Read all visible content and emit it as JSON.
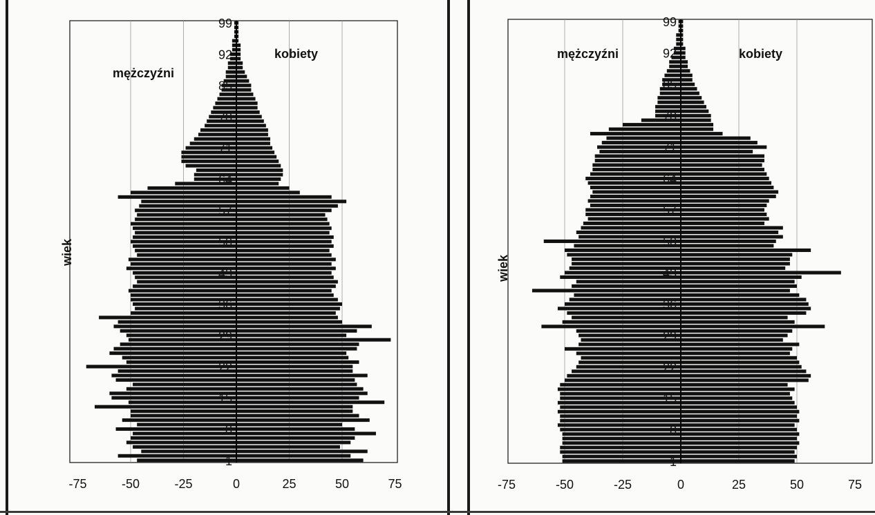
{
  "chart_data": [
    {
      "type": "bar",
      "orientation": "horizontal-pyramid",
      "ylabel": "wiek",
      "left_series_label": "mężczyźni",
      "right_series_label": "kobiety",
      "xticks": [
        "-75",
        "-50",
        "-25",
        "0",
        "25",
        "50",
        "75"
      ],
      "xlim": [
        -75,
        75
      ],
      "age_labels": [
        "99",
        "92",
        "85",
        "78",
        "71",
        "64",
        "57",
        "50",
        "43",
        "36",
        "29",
        "22",
        "15",
        "8",
        "1"
      ],
      "grid": true,
      "series": [
        {
          "name": "mężczyźni",
          "values": [
            -47,
            -56,
            -45,
            -49,
            -52,
            -50,
            -49,
            -57,
            -47,
            -54,
            -50,
            -50,
            -67,
            -51,
            -59,
            -60,
            -52,
            -49,
            -57,
            -59,
            -56,
            -71,
            -52,
            -54,
            -60,
            -58,
            -55,
            -51,
            -52,
            -55,
            -58,
            -56,
            -65,
            -50,
            -48,
            -49,
            -50,
            -50,
            -51,
            -49,
            -47,
            -48,
            -49,
            -52,
            -50,
            -51,
            -47,
            -48,
            -49,
            -50,
            -49,
            -48,
            -49,
            -50,
            -48,
            -47,
            -48,
            -46,
            -45,
            -56,
            -50,
            -42,
            -29,
            -20,
            -20,
            -19,
            -24,
            -26,
            -26,
            -26,
            -24,
            -22,
            -20,
            -18,
            -17,
            -15,
            -14,
            -13,
            -12,
            -11,
            -10,
            -9,
            -8,
            -7,
            -7,
            -6,
            -5,
            -5,
            -4,
            -4,
            -3,
            -3,
            -2,
            -2,
            -2,
            -1,
            -1,
            -1,
            -1
          ]
        },
        {
          "name": "kobiety",
          "values": [
            60,
            54,
            62,
            49,
            54,
            56,
            66,
            56,
            50,
            63,
            58,
            55,
            55,
            70,
            58,
            62,
            60,
            57,
            56,
            62,
            55,
            55,
            58,
            53,
            52,
            57,
            58,
            73,
            52,
            57,
            64,
            50,
            48,
            47,
            49,
            50,
            48,
            46,
            45,
            47,
            48,
            46,
            45,
            47,
            45,
            47,
            45,
            44,
            46,
            45,
            46,
            44,
            45,
            44,
            43,
            42,
            45,
            48,
            52,
            45,
            30,
            25,
            20,
            21,
            22,
            22,
            21,
            20,
            19,
            18,
            17,
            16,
            16,
            15,
            15,
            14,
            13,
            12,
            11,
            10,
            10,
            9,
            8,
            7,
            7,
            6,
            5,
            4,
            3,
            3,
            2,
            2,
            2,
            2,
            1,
            1,
            1,
            1,
            1
          ]
        }
      ]
    },
    {
      "type": "bar",
      "orientation": "horizontal-pyramid",
      "ylabel": "wiek",
      "left_series_label": "mężczyźni",
      "right_series_label": "kobiety",
      "xticks": [
        "-75",
        "-50",
        "-25",
        "0",
        "25",
        "50",
        "75"
      ],
      "xlim": [
        -75,
        75
      ],
      "age_labels": [
        "99",
        "92",
        "85",
        "78",
        "71",
        "64",
        "57",
        "50",
        "43",
        "36",
        "29",
        "22",
        "15",
        "8",
        "1"
      ],
      "grid": true,
      "series": [
        {
          "name": "mężczyźni",
          "values": [
            -51,
            -51,
            -52,
            -52,
            -51,
            -51,
            -51,
            -52,
            -53,
            -52,
            -52,
            -53,
            -52,
            -53,
            -52,
            -52,
            -53,
            -52,
            -50,
            -49,
            -47,
            -45,
            -44,
            -43,
            -45,
            -50,
            -44,
            -43,
            -44,
            -45,
            -60,
            -51,
            -47,
            -49,
            -53,
            -50,
            -48,
            -46,
            -64,
            -47,
            -45,
            -52,
            -50,
            -48,
            -47,
            -47,
            -49,
            -50,
            -46,
            -59,
            -44,
            -45,
            -43,
            -42,
            -40,
            -41,
            -41,
            -39,
            -40,
            -39,
            -38,
            -39,
            -40,
            -41,
            -39,
            -38,
            -38,
            -37,
            -37,
            -35,
            -36,
            -34,
            -32,
            -39,
            -31,
            -25,
            -17,
            -11,
            -11,
            -11,
            -10,
            -10,
            -9,
            -9,
            -8,
            -8,
            -7,
            -6,
            -5,
            -5,
            -4,
            -3,
            -3,
            -2,
            -2,
            -2,
            -1,
            -1,
            -1
          ]
        },
        {
          "name": "kobiety",
          "values": [
            49,
            50,
            49,
            50,
            51,
            50,
            51,
            50,
            49,
            51,
            50,
            51,
            50,
            49,
            48,
            47,
            49,
            46,
            55,
            56,
            54,
            52,
            51,
            50,
            47,
            48,
            51,
            44,
            46,
            48,
            62,
            49,
            46,
            54,
            56,
            55,
            54,
            51,
            47,
            50,
            49,
            52,
            69,
            45,
            47,
            47,
            48,
            56,
            40,
            41,
            44,
            42,
            44,
            36,
            38,
            37,
            36,
            37,
            38,
            41,
            42,
            40,
            39,
            38,
            37,
            36,
            35,
            36,
            36,
            31,
            37,
            33,
            30,
            18,
            14,
            14,
            13,
            13,
            12,
            11,
            10,
            9,
            8,
            7,
            6,
            5,
            5,
            4,
            3,
            3,
            2,
            2,
            2,
            1,
            1,
            1,
            1,
            1,
            1
          ]
        }
      ]
    }
  ]
}
